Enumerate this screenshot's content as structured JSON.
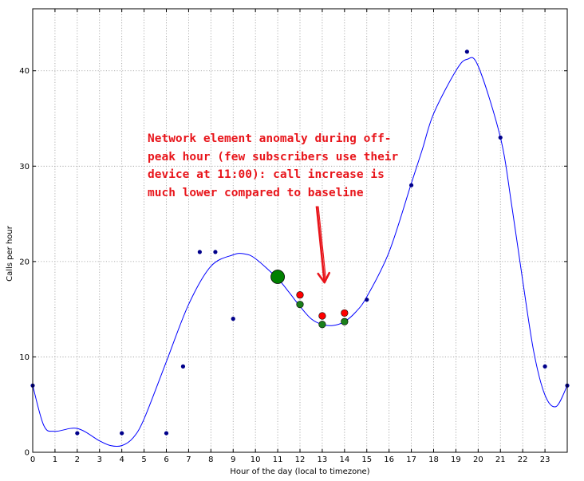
{
  "chart_data": {
    "type": "scatter",
    "title": "",
    "xlabel": "Hour of the day (local to timezone)",
    "ylabel": "Calls per hour",
    "xlim": [
      0,
      24
    ],
    "ylim": [
      0,
      46.5
    ],
    "xticks": [
      0,
      1,
      2,
      3,
      4,
      5,
      6,
      7,
      8,
      9,
      10,
      11,
      12,
      13,
      14,
      15,
      16,
      17,
      18,
      19,
      20,
      21,
      22,
      23
    ],
    "yticks": [
      0,
      10,
      20,
      30,
      40
    ],
    "grid": true,
    "colors": {
      "points": "#00008b",
      "curve": "#0000ff",
      "highlight": "#008000",
      "anomaly": "#ff0000",
      "annotation": "#e8151b"
    },
    "series": [
      {
        "kind": "points",
        "x": [
          0,
          2,
          4,
          6,
          6.75,
          7.5,
          8.2,
          9,
          11,
          12,
          13,
          14,
          15,
          17,
          19.5,
          21,
          23,
          24
        ],
        "y": [
          7,
          2,
          2,
          2,
          9,
          21,
          21,
          14,
          18.4,
          15.5,
          13.4,
          13.7,
          16,
          28,
          42,
          33,
          9,
          7
        ]
      },
      {
        "kind": "curve",
        "x": [
          0,
          0.5,
          1,
          2,
          3,
          3.5,
          4,
          4.5,
          5,
          6,
          7,
          8,
          9,
          9.5,
          10,
          11,
          11.5,
          12,
          12.5,
          13,
          13.5,
          14,
          14.5,
          15,
          16,
          17,
          17.5,
          18,
          19,
          19.5,
          20,
          21,
          21.5,
          22,
          22.5,
          23,
          23.5,
          24
        ],
        "y": [
          7,
          2.8,
          2.2,
          2.5,
          1.2,
          0.7,
          0.7,
          1.5,
          3.5,
          9.5,
          15.5,
          19.5,
          20.7,
          20.8,
          20.3,
          18.2,
          16.8,
          15.3,
          14.0,
          13.4,
          13.3,
          13.7,
          14.7,
          16.3,
          21.0,
          28.2,
          31.8,
          35.5,
          40.0,
          41.2,
          40.5,
          33.0,
          26.0,
          18.0,
          10.5,
          6.0,
          4.8,
          7.0
        ]
      },
      {
        "kind": "anomaly",
        "x": [
          12,
          13,
          14
        ],
        "y": [
          16.5,
          14.3,
          14.6
        ]
      },
      {
        "kind": "highlight",
        "x": [
          11
        ],
        "y": [
          18.4
        ]
      }
    ],
    "annotation": {
      "lines": [
        "Network element anomaly during off-",
        "peak hour (few subscribers use their",
        "device at 11:00): call increase is",
        "much lower compared to baseline"
      ],
      "arrow_from": [
        12.75,
        25.8
      ],
      "arrow_to": [
        13.1,
        17.8
      ]
    }
  }
}
